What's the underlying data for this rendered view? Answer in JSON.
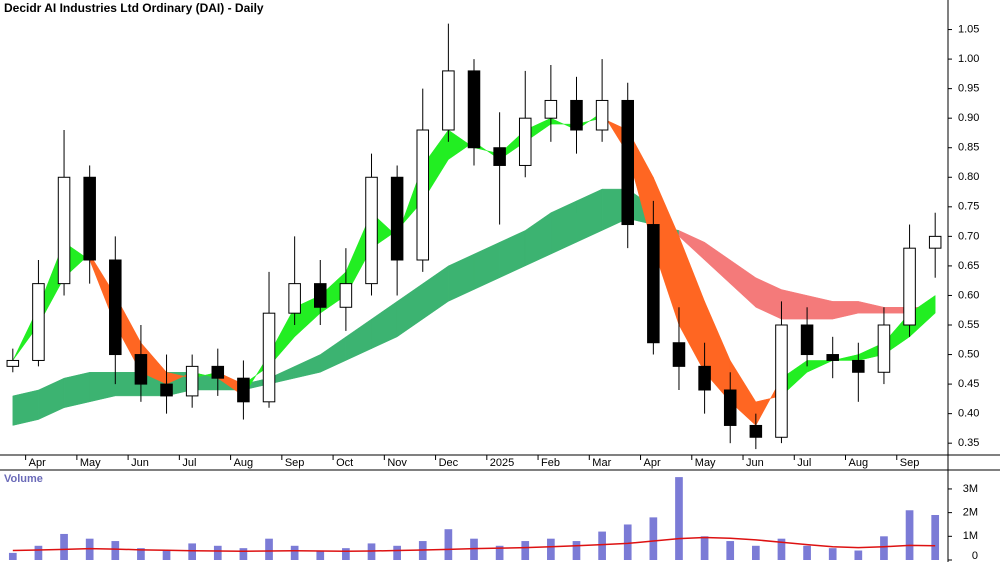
{
  "chart_data": {
    "type": "candlestick",
    "title": "Decidr AI Industries Ltd Ordinary (DAI) - Daily",
    "categories": [
      null,
      "Apr",
      null,
      "May",
      null,
      "Jun",
      null,
      "Jul",
      null,
      "Aug",
      null,
      "Sep",
      null,
      "Oct",
      null,
      "Nov",
      null,
      "Dec",
      null,
      "2025",
      null,
      "Feb",
      null,
      "Mar",
      null,
      "Apr",
      null,
      "May",
      null,
      "Jun",
      null,
      "Jul",
      null,
      "Aug",
      null,
      "Sep",
      null
    ],
    "ylim": [
      0.33,
      1.1
    ],
    "yticks": [
      0.35,
      {
        "value": 0.4,
        "label": "0.40"
      },
      0.45,
      {
        "value": 0.5,
        "label": "0.50"
      },
      0.55,
      {
        "value": 0.6,
        "label": "0.60"
      },
      0.65,
      {
        "value": 0.7,
        "label": "0.70"
      },
      0.75,
      {
        "value": 0.8,
        "label": "0.80"
      },
      0.85,
      {
        "value": 0.9,
        "label": "0.90"
      },
      0.95,
      {
        "value": 1.0,
        "label": "1.00"
      },
      1.05
    ],
    "candles": {
      "open": [
        0.48,
        0.49,
        0.62,
        0.8,
        0.66,
        0.5,
        0.45,
        0.43,
        0.48,
        0.46,
        0.42,
        0.57,
        0.62,
        0.58,
        0.62,
        0.8,
        0.66,
        0.88,
        0.98,
        0.85,
        0.82,
        0.9,
        0.93,
        0.88,
        0.93,
        0.72,
        0.52,
        0.48,
        0.44,
        0.38,
        0.36,
        0.55,
        0.5,
        0.49,
        0.47,
        0.55,
        0.68
      ],
      "high": [
        0.51,
        0.66,
        0.88,
        0.82,
        0.7,
        0.55,
        0.5,
        0.5,
        0.51,
        0.49,
        0.64,
        0.7,
        0.66,
        0.68,
        0.84,
        0.82,
        0.95,
        1.06,
        1.0,
        0.91,
        0.98,
        0.99,
        0.97,
        1.0,
        0.96,
        0.76,
        0.58,
        0.52,
        0.47,
        0.4,
        0.59,
        0.58,
        0.53,
        0.52,
        0.58,
        0.72,
        0.74
      ],
      "low": [
        0.47,
        0.48,
        0.6,
        0.62,
        0.45,
        0.42,
        0.4,
        0.41,
        0.43,
        0.39,
        0.41,
        0.55,
        0.55,
        0.54,
        0.6,
        0.6,
        0.64,
        0.86,
        0.82,
        0.72,
        0.8,
        0.86,
        0.84,
        0.86,
        0.68,
        0.5,
        0.44,
        0.4,
        0.35,
        0.34,
        0.35,
        0.48,
        0.46,
        0.42,
        0.45,
        0.53,
        0.63
      ],
      "close": [
        0.49,
        0.62,
        0.8,
        0.66,
        0.5,
        0.45,
        0.43,
        0.48,
        0.46,
        0.42,
        0.57,
        0.62,
        0.58,
        0.62,
        0.8,
        0.66,
        0.88,
        0.98,
        0.85,
        0.82,
        0.9,
        0.93,
        0.88,
        0.93,
        0.72,
        0.52,
        0.48,
        0.44,
        0.38,
        0.36,
        0.55,
        0.5,
        0.49,
        0.47,
        0.55,
        0.68,
        0.7
      ]
    },
    "ribbons": [
      {
        "fast": [
          0.49,
          0.58,
          0.69,
          0.66,
          0.55,
          0.47,
          0.45,
          0.47,
          0.46,
          0.43,
          0.5,
          0.58,
          0.6,
          0.64,
          0.74,
          0.7,
          0.82,
          0.88,
          0.85,
          0.84,
          0.88,
          0.9,
          0.88,
          0.91,
          0.84,
          0.68,
          0.55,
          0.47,
          0.42,
          0.38,
          0.46,
          0.49,
          0.49,
          0.5,
          0.52,
          0.57,
          0.6
        ],
        "slow": [
          0.49,
          0.55,
          0.63,
          0.67,
          0.6,
          0.52,
          0.47,
          0.46,
          0.47,
          0.45,
          0.48,
          0.53,
          0.57,
          0.6,
          0.68,
          0.71,
          0.76,
          0.83,
          0.86,
          0.83,
          0.86,
          0.89,
          0.89,
          0.9,
          0.88,
          0.8,
          0.7,
          0.59,
          0.49,
          0.42,
          0.43,
          0.47,
          0.49,
          0.49,
          0.5,
          0.53,
          0.57
        ],
        "up_color": "#22ee22",
        "down_color": "#ff6622"
      },
      {
        "fast": [
          0.43,
          0.44,
          0.46,
          0.47,
          0.47,
          0.47,
          0.47,
          0.47,
          0.46,
          0.45,
          0.46,
          0.48,
          0.5,
          0.53,
          0.56,
          0.59,
          0.62,
          0.65,
          0.67,
          0.69,
          0.71,
          0.74,
          0.76,
          0.78,
          0.78,
          0.75,
          0.7,
          0.66,
          0.62,
          0.58,
          0.56,
          0.56,
          0.56,
          0.57,
          0.57,
          0.57,
          0.58
        ],
        "slow": [
          0.38,
          0.39,
          0.41,
          0.42,
          0.43,
          0.43,
          0.43,
          0.44,
          0.44,
          0.44,
          0.45,
          0.46,
          0.47,
          0.49,
          0.51,
          0.53,
          0.56,
          0.59,
          0.61,
          0.63,
          0.65,
          0.67,
          0.69,
          0.71,
          0.73,
          0.72,
          0.71,
          0.69,
          0.66,
          0.63,
          0.61,
          0.6,
          0.59,
          0.59,
          0.58,
          0.58,
          0.58
        ],
        "up_color": "#3cb371",
        "down_color": "#f47a7a"
      }
    ],
    "volume": {
      "label": "Volume",
      "color": "#7b7bd6",
      "ma_color": "#dd1111",
      "values": [
        300000,
        600000,
        1100000,
        900000,
        800000,
        500000,
        400000,
        700000,
        600000,
        500000,
        900000,
        600000,
        400000,
        500000,
        700000,
        600000,
        800000,
        1300000,
        900000,
        600000,
        800000,
        900000,
        800000,
        1200000,
        1500000,
        1800000,
        3500000,
        1000000,
        800000,
        600000,
        900000,
        600000,
        500000,
        400000,
        1000000,
        2100000,
        1900000
      ],
      "ma": [
        400000,
        420000,
        450000,
        480000,
        460000,
        430000,
        410000,
        390000,
        380000,
        370000,
        380000,
        390000,
        380000,
        370000,
        380000,
        400000,
        420000,
        450000,
        480000,
        500000,
        520000,
        560000,
        600000,
        650000,
        700000,
        800000,
        900000,
        950000,
        920000,
        850000,
        750000,
        650000,
        560000,
        520000,
        560000,
        620000,
        600000
      ],
      "ylim": [
        0,
        3800000
      ],
      "yticks": [
        0,
        {
          "value": 1000000,
          "label": "1M"
        },
        {
          "value": 2000000,
          "label": "2M"
        },
        {
          "value": 3000000,
          "label": "3M"
        }
      ]
    }
  }
}
